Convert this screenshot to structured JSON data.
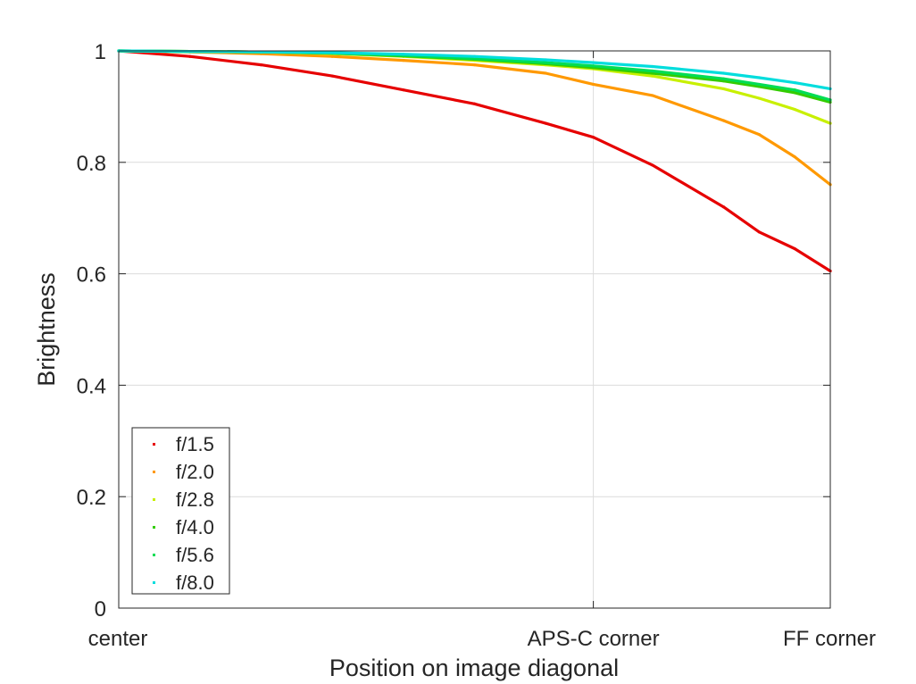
{
  "chart_data": {
    "type": "scatter",
    "title": "",
    "xlabel": "Position on image diagonal",
    "ylabel": "Brightness",
    "xlim": [
      0,
      1
    ],
    "ylim": [
      0,
      1
    ],
    "grid": true,
    "legend_position": "bottom-left",
    "x_ticks": [
      {
        "value": 0.0,
        "label": "center"
      },
      {
        "value": 0.667,
        "label": "APS-C corner"
      },
      {
        "value": 1.0,
        "label": "FF corner"
      }
    ],
    "y_ticks": [
      {
        "value": 0,
        "label": "0"
      },
      {
        "value": 0.2,
        "label": "0.2"
      },
      {
        "value": 0.4,
        "label": "0.4"
      },
      {
        "value": 0.6,
        "label": "0.6"
      },
      {
        "value": 0.8,
        "label": "0.8"
      },
      {
        "value": 1.0,
        "label": "1"
      }
    ],
    "x": [
      0,
      0.1,
      0.2,
      0.3,
      0.4,
      0.5,
      0.6,
      0.667,
      0.75,
      0.85,
      0.9,
      0.95,
      1.0
    ],
    "series": [
      {
        "name": "f/1.5",
        "color": "#e60000",
        "values": [
          1.0,
          0.99,
          0.975,
          0.955,
          0.93,
          0.905,
          0.87,
          0.845,
          0.795,
          0.72,
          0.675,
          0.645,
          0.605
        ]
      },
      {
        "name": "f/2.0",
        "color": "#ff9900",
        "values": [
          1.0,
          0.998,
          0.995,
          0.99,
          0.983,
          0.975,
          0.96,
          0.94,
          0.92,
          0.875,
          0.85,
          0.81,
          0.76
        ]
      },
      {
        "name": "f/2.8",
        "color": "#c8f000",
        "values": [
          1.0,
          0.999,
          0.998,
          0.995,
          0.99,
          0.983,
          0.975,
          0.968,
          0.955,
          0.932,
          0.915,
          0.895,
          0.87
        ]
      },
      {
        "name": "f/4.0",
        "color": "#33cc00",
        "values": [
          1.0,
          0.999,
          0.998,
          0.996,
          0.991,
          0.985,
          0.977,
          0.97,
          0.96,
          0.946,
          0.936,
          0.925,
          0.908
        ]
      },
      {
        "name": "f/5.6",
        "color": "#00dd55",
        "values": [
          1.0,
          0.999,
          0.998,
          0.996,
          0.992,
          0.986,
          0.979,
          0.973,
          0.964,
          0.95,
          0.94,
          0.93,
          0.912
        ]
      },
      {
        "name": "f/8.0",
        "color": "#00dddd",
        "values": [
          1.0,
          0.999,
          0.998,
          0.997,
          0.994,
          0.99,
          0.984,
          0.979,
          0.972,
          0.96,
          0.952,
          0.943,
          0.932
        ]
      }
    ]
  }
}
